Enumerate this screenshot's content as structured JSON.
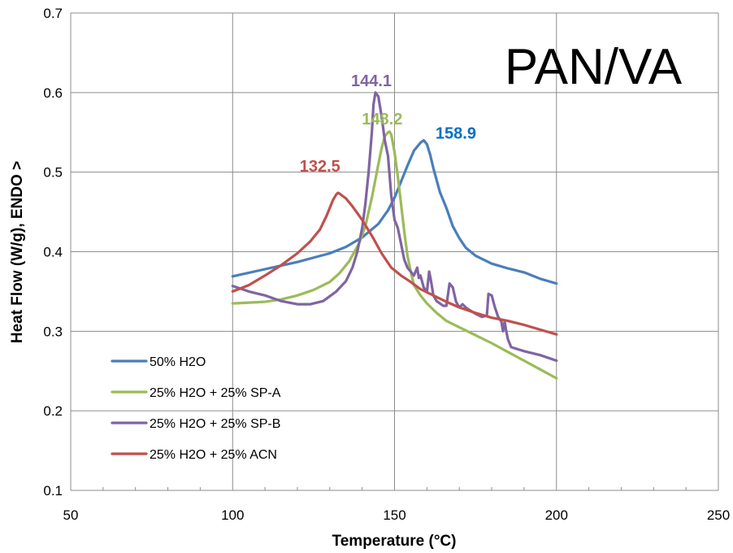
{
  "chart_data": {
    "type": "line",
    "title": "PAN/VA",
    "xlabel": "Temperature (°C)",
    "ylabel": "Heat Flow (W/g), ENDO >",
    "xlim": [
      50,
      250
    ],
    "ylim": [
      0.1,
      0.7
    ],
    "x_ticks": [
      "50",
      "100",
      "150",
      "200",
      "250"
    ],
    "y_ticks": [
      "0.1",
      "0.2",
      "0.3",
      "0.4",
      "0.5",
      "0.6",
      "0.7"
    ],
    "grid": true,
    "legend_position": "lower-left",
    "series": [
      {
        "name": "50% H2O",
        "color": "#4a7ebb",
        "points": [
          [
            100,
            0.369
          ],
          [
            110,
            0.378
          ],
          [
            120,
            0.387
          ],
          [
            130,
            0.398
          ],
          [
            135,
            0.406
          ],
          [
            140,
            0.418
          ],
          [
            145,
            0.435
          ],
          [
            148,
            0.452
          ],
          [
            150,
            0.468
          ],
          [
            152,
            0.488
          ],
          [
            154,
            0.508
          ],
          [
            156,
            0.527
          ],
          [
            158,
            0.537
          ],
          [
            159,
            0.54
          ],
          [
            160,
            0.535
          ],
          [
            161,
            0.522
          ],
          [
            162,
            0.505
          ],
          [
            164,
            0.475
          ],
          [
            166,
            0.455
          ],
          [
            168,
            0.432
          ],
          [
            170,
            0.417
          ],
          [
            172,
            0.405
          ],
          [
            175,
            0.395
          ],
          [
            180,
            0.385
          ],
          [
            185,
            0.379
          ],
          [
            190,
            0.374
          ],
          [
            195,
            0.366
          ],
          [
            200,
            0.36
          ]
        ]
      },
      {
        "name": "25% H2O + 25% SP-A",
        "color": "#9bbb59",
        "points": [
          [
            100,
            0.335
          ],
          [
            110,
            0.337
          ],
          [
            115,
            0.34
          ],
          [
            120,
            0.345
          ],
          [
            125,
            0.352
          ],
          [
            130,
            0.362
          ],
          [
            133,
            0.373
          ],
          [
            136,
            0.388
          ],
          [
            139,
            0.41
          ],
          [
            141,
            0.432
          ],
          [
            143,
            0.468
          ],
          [
            145,
            0.51
          ],
          [
            146,
            0.53
          ],
          [
            147,
            0.545
          ],
          [
            148,
            0.55
          ],
          [
            148.5,
            0.551
          ],
          [
            149,
            0.547
          ],
          [
            150,
            0.525
          ],
          [
            151,
            0.495
          ],
          [
            152,
            0.46
          ],
          [
            153,
            0.425
          ],
          [
            154,
            0.395
          ],
          [
            155,
            0.375
          ],
          [
            156,
            0.358
          ],
          [
            158,
            0.345
          ],
          [
            160,
            0.335
          ],
          [
            163,
            0.323
          ],
          [
            166,
            0.313
          ],
          [
            170,
            0.305
          ],
          [
            175,
            0.295
          ],
          [
            180,
            0.285
          ],
          [
            185,
            0.274
          ],
          [
            190,
            0.263
          ],
          [
            195,
            0.252
          ],
          [
            200,
            0.241
          ]
        ]
      },
      {
        "name": "25% H2O + 25% SP-B",
        "color": "#8064a2",
        "points": [
          [
            100,
            0.357
          ],
          [
            105,
            0.35
          ],
          [
            110,
            0.345
          ],
          [
            115,
            0.338
          ],
          [
            120,
            0.334
          ],
          [
            124,
            0.334
          ],
          [
            128,
            0.338
          ],
          [
            132,
            0.35
          ],
          [
            135,
            0.363
          ],
          [
            137,
            0.38
          ],
          [
            138.5,
            0.4
          ],
          [
            140,
            0.43
          ],
          [
            141,
            0.46
          ],
          [
            142,
            0.5
          ],
          [
            143,
            0.55
          ],
          [
            143.5,
            0.585
          ],
          [
            144.1,
            0.6
          ],
          [
            145,
            0.595
          ],
          [
            146,
            0.57
          ],
          [
            147,
            0.54
          ],
          [
            148,
            0.52
          ],
          [
            149,
            0.47
          ],
          [
            150,
            0.44
          ],
          [
            151,
            0.43
          ],
          [
            152,
            0.41
          ],
          [
            153,
            0.39
          ],
          [
            154,
            0.38
          ],
          [
            155,
            0.375
          ],
          [
            156,
            0.37
          ],
          [
            157,
            0.38
          ],
          [
            157.5,
            0.367
          ],
          [
            158,
            0.37
          ],
          [
            159,
            0.355
          ],
          [
            160,
            0.35
          ],
          [
            160.7,
            0.375
          ],
          [
            161.2,
            0.365
          ],
          [
            162,
            0.345
          ],
          [
            163,
            0.338
          ],
          [
            164,
            0.335
          ],
          [
            165,
            0.332
          ],
          [
            166,
            0.332
          ],
          [
            167,
            0.36
          ],
          [
            168,
            0.355
          ],
          [
            169,
            0.337
          ],
          [
            170,
            0.33
          ],
          [
            171,
            0.334
          ],
          [
            172,
            0.33
          ],
          [
            173,
            0.327
          ],
          [
            175,
            0.322
          ],
          [
            177,
            0.318
          ],
          [
            178.5,
            0.32
          ],
          [
            179,
            0.347
          ],
          [
            180,
            0.345
          ],
          [
            181,
            0.33
          ],
          [
            182,
            0.318
          ],
          [
            183,
            0.312
          ],
          [
            183.5,
            0.3
          ],
          [
            184,
            0.312
          ],
          [
            184.5,
            0.3
          ],
          [
            185,
            0.29
          ],
          [
            186,
            0.28
          ],
          [
            190,
            0.275
          ],
          [
            195,
            0.27
          ],
          [
            200,
            0.263
          ]
        ]
      },
      {
        "name": "25% H2O + 25% ACN",
        "color": "#c0504d",
        "points": [
          [
            100,
            0.35
          ],
          [
            105,
            0.358
          ],
          [
            110,
            0.37
          ],
          [
            115,
            0.383
          ],
          [
            120,
            0.398
          ],
          [
            124,
            0.413
          ],
          [
            127,
            0.428
          ],
          [
            129,
            0.445
          ],
          [
            130,
            0.455
          ],
          [
            131,
            0.465
          ],
          [
            132,
            0.472
          ],
          [
            132.5,
            0.474
          ],
          [
            133,
            0.473
          ],
          [
            135,
            0.467
          ],
          [
            137,
            0.457
          ],
          [
            140,
            0.44
          ],
          [
            143,
            0.42
          ],
          [
            146,
            0.398
          ],
          [
            149,
            0.38
          ],
          [
            152,
            0.37
          ],
          [
            155,
            0.362
          ],
          [
            158,
            0.353
          ],
          [
            162,
            0.345
          ],
          [
            166,
            0.337
          ],
          [
            170,
            0.33
          ],
          [
            175,
            0.323
          ],
          [
            180,
            0.317
          ],
          [
            185,
            0.313
          ],
          [
            190,
            0.308
          ],
          [
            195,
            0.302
          ],
          [
            200,
            0.296
          ]
        ]
      }
    ],
    "annotations": [
      {
        "text": "144.1",
        "color": "#8064a2",
        "x": 144.1,
        "y": 0.6
      },
      {
        "text": "148.2",
        "color": "#9bbb59",
        "x": 148.2,
        "y": 0.551
      },
      {
        "text": "158.9",
        "color": "#0070c0",
        "x": 158.9,
        "y": 0.54
      },
      {
        "text": "132.5",
        "color": "#c0504d",
        "x": 132.5,
        "y": 0.474
      }
    ]
  }
}
